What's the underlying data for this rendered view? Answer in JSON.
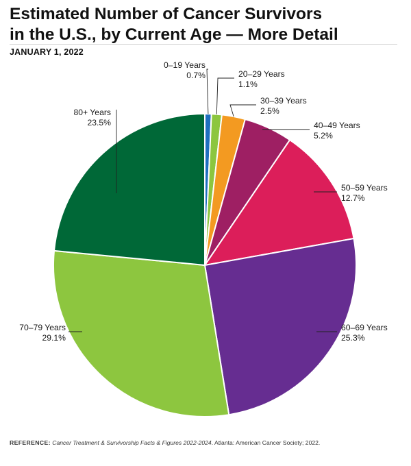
{
  "title_line1": "Estimated Number of Cancer Survivors",
  "title_line2": "in the U.S., by Current Age — More Detail",
  "date": "JANUARY 1, 2022",
  "footer": {
    "ref_label": "REFERENCE:",
    "citation": "Cancer Treatment & Survivorship Facts & Figures 2022-2024",
    "rest": ". Atlanta: American Cancer Society; 2022."
  },
  "chart_data": {
    "type": "pie",
    "title": "Estimated Number of Cancer Survivors in the U.S., by Current Age — More Detail",
    "start_angle": "12 o'clock",
    "direction": "clockwise",
    "slices": [
      {
        "label": "0–19 Years",
        "value": 0.7,
        "display": "0.7%",
        "color": "#1f6fbf"
      },
      {
        "label": "20–29 Years",
        "value": 1.1,
        "display": "1.1%",
        "color": "#8cc63f"
      },
      {
        "label": "30–39 Years",
        "value": 2.5,
        "display": "2.5%",
        "color": "#f39a21"
      },
      {
        "label": "40–49 Years",
        "value": 5.2,
        "display": "5.2%",
        "color": "#9e1f63"
      },
      {
        "label": "50–59 Years",
        "value": 12.7,
        "display": "12.7%",
        "color": "#dc1e5a"
      },
      {
        "label": "60–69 Years",
        "value": 25.3,
        "display": "25.3%",
        "color": "#662d91"
      },
      {
        "label": "70–79 Years",
        "value": 29.1,
        "display": "29.1%",
        "color": "#8dc63f"
      },
      {
        "label": "80+ Years",
        "value": 23.5,
        "display": "23.5%",
        "color": "#006837"
      }
    ]
  }
}
